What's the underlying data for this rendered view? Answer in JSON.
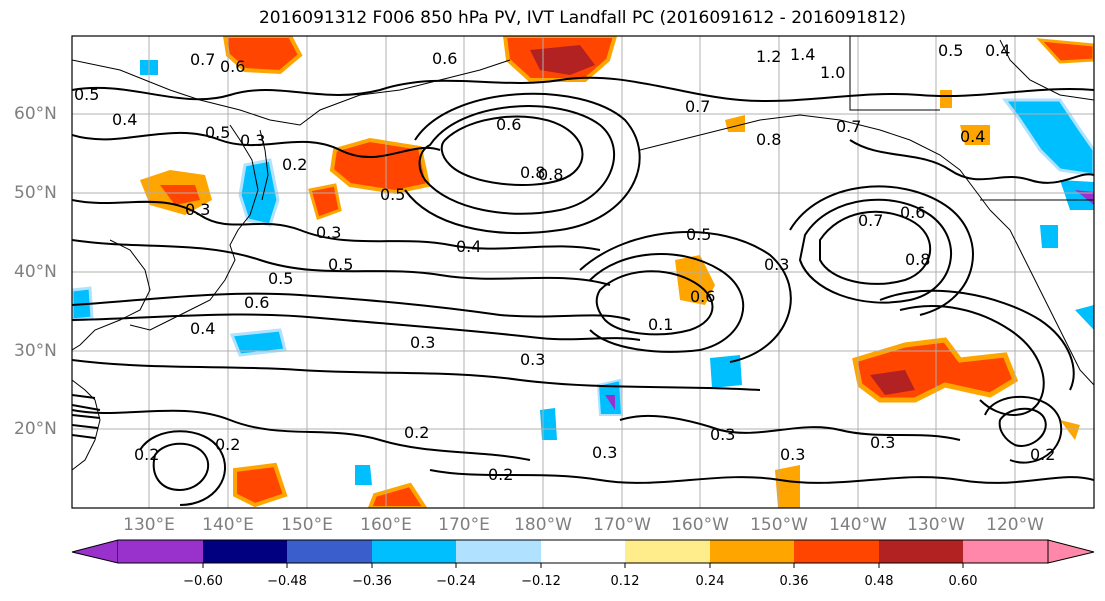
{
  "title": "2016091312 F006 850 hPa PV, IVT Landfall PC (2016091612 - 2016091812)",
  "lat_labels": [
    "60°N",
    "50°N",
    "40°N",
    "30°N",
    "20°N"
  ],
  "lon_labels": [
    "130°E",
    "140°E",
    "150°E",
    "160°E",
    "170°E",
    "180°W",
    "170°W",
    "160°W",
    "150°W",
    "140°W",
    "130°W",
    "120°W"
  ],
  "contour_labels": [
    "0.7",
    "0.6",
    "0.6",
    "1.2",
    "1.4",
    "1.0",
    "0.5",
    "0.4",
    "0.5",
    "0.4",
    "0.5",
    "0.3",
    "0.2",
    "0.6",
    "0.8",
    "0.7",
    "0.8",
    "0.7",
    "0.4",
    "0.5",
    "0.3",
    "0.3",
    "0.5",
    "0.4",
    "0.5",
    "0.6",
    "0.4",
    "0.8",
    "0.1",
    "0.6",
    "0.5",
    "0.3",
    "0.6",
    "0.7",
    "0.8",
    "0.3",
    "0.3",
    "0.2",
    "0.2",
    "0.3",
    "0.2",
    "0.3",
    "0.2",
    "0.3",
    "0.3",
    "0.2"
  ],
  "colorbar": {
    "colors": [
      "#9932cc",
      "#000080",
      "#3a5fcd",
      "#00bfff",
      "#b0e2ff",
      "#ffffff",
      "#ffffff",
      "#ffec8b",
      "#ffa500",
      "#ff4500",
      "#b22222",
      "#ff88aa"
    ],
    "tick_labels": [
      "−0.60",
      "−0.48",
      "−0.36",
      "−0.24",
      "−0.12",
      "0.12",
      "0.24",
      "0.36",
      "0.48",
      "0.60"
    ]
  }
}
